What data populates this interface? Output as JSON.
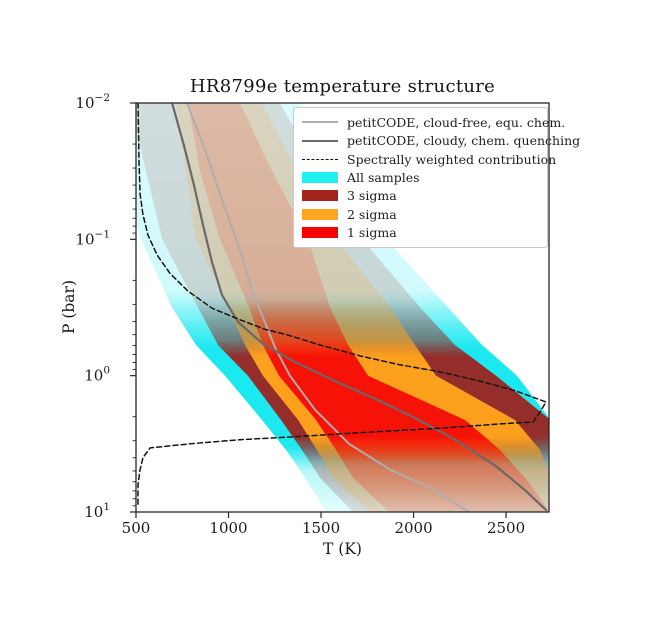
{
  "page": {
    "background": "#ffffff"
  },
  "chart_data": {
    "type": "line",
    "title": "HR8799e temperature structure",
    "xlabel": "T (K)",
    "ylabel": "P (bar)",
    "x_range": [
      500,
      2732
    ],
    "y_log_range": [
      -2,
      1
    ],
    "y_axis_note": "log scale, 10^-2 bar at top to 10^1 bar at bottom",
    "grid": false,
    "legend_position": "upper right",
    "x_ticks": [
      500,
      1000,
      1500,
      2000,
      2500
    ],
    "y_ticks": [
      {
        "base": "10",
        "exp": "−2",
        "logP": -2
      },
      {
        "base": "10",
        "exp": "−1",
        "logP": -1
      },
      {
        "base": "10",
        "exp": "0",
        "logP": 0
      },
      {
        "base": "10",
        "exp": "1",
        "logP": 1
      }
    ],
    "series": [
      {
        "name": "petitCODE, cloud-free, equ. chem.",
        "style": "solid",
        "color": "#b3acac",
        "width": 2,
        "points": [
          [
            776,
            -2
          ],
          [
            873,
            -1.655
          ],
          [
            965,
            -1.29
          ],
          [
            1062,
            -0.92
          ],
          [
            1127,
            -0.63
          ],
          [
            1197,
            -0.39
          ],
          [
            1257,
            -0.19
          ],
          [
            1332,
            0.0
          ],
          [
            1468,
            0.25
          ],
          [
            1651,
            0.5
          ],
          [
            1873,
            0.69
          ],
          [
            2089,
            0.82
          ],
          [
            2300,
            1.0
          ]
        ]
      },
      {
        "name": "petitCODE, cloudy, chem. quenching",
        "style": "solid",
        "color": "#6e6767",
        "width": 2.2,
        "points": [
          [
            695,
            -2
          ],
          [
            759,
            -1.69
          ],
          [
            813,
            -1.4
          ],
          [
            862,
            -1.105
          ],
          [
            911,
            -0.833
          ],
          [
            965,
            -0.591
          ],
          [
            1051,
            -0.394
          ],
          [
            1181,
            -0.239
          ],
          [
            1359,
            -0.1
          ],
          [
            1576,
            0.04
          ],
          [
            1792,
            0.17
          ],
          [
            2008,
            0.31
          ],
          [
            2224,
            0.47
          ],
          [
            2441,
            0.66
          ],
          [
            2603,
            0.84
          ],
          [
            2716,
            0.985
          ]
        ]
      },
      {
        "name": "Spectrally weighted contribution",
        "style": "dashed",
        "color": "#141414",
        "width": 1.5,
        "points": [
          [
            511,
            -2
          ],
          [
            516,
            -1.58
          ],
          [
            522,
            -1.33
          ],
          [
            538,
            -1.18
          ],
          [
            565,
            -1.03
          ],
          [
            614,
            -0.885
          ],
          [
            684,
            -0.75
          ],
          [
            781,
            -0.62
          ],
          [
            911,
            -0.495
          ],
          [
            1062,
            -0.41
          ],
          [
            1197,
            -0.34
          ],
          [
            1316,
            -0.3
          ],
          [
            1495,
            -0.225
          ],
          [
            1711,
            -0.145
          ],
          [
            1927,
            -0.08
          ],
          [
            2143,
            -0.028
          ],
          [
            2359,
            0.04
          ],
          [
            2549,
            0.11
          ],
          [
            2716,
            0.193
          ],
          [
            2684,
            0.266
          ],
          [
            2646,
            0.34
          ],
          [
            2468,
            0.354
          ],
          [
            2305,
            0.37
          ],
          [
            2089,
            0.39
          ],
          [
            1873,
            0.405
          ],
          [
            1603,
            0.427
          ],
          [
            1332,
            0.45
          ],
          [
            1062,
            0.47
          ],
          [
            792,
            0.5
          ],
          [
            576,
            0.53
          ],
          [
            538,
            0.6
          ],
          [
            522,
            0.69
          ],
          [
            511,
            0.8
          ],
          [
            511,
            0.947
          ]
        ]
      }
    ],
    "bands": [
      {
        "name": "All samples",
        "color": "#10e7ef",
        "opacity_stops": [
          [
            0,
            0.15
          ],
          [
            0.46,
            0.2
          ],
          [
            0.54,
            0.65
          ],
          [
            0.6,
            0.95
          ],
          [
            0.84,
            0.95
          ],
          [
            0.9,
            0.3
          ],
          [
            1,
            0.12
          ]
        ],
        "rows": [
          {
            "logP": -2,
            "tl": 332,
            "tr": 1386
          },
          {
            "logP": -1.5,
            "tl": 424,
            "tr": 1608
          },
          {
            "logP": -1,
            "tl": 527,
            "tr": 1851
          },
          {
            "logP": -0.5,
            "tl": 695,
            "tr": 2186
          },
          {
            "logP": -0.225,
            "tl": 824,
            "tr": 2370
          },
          {
            "logP": 0,
            "tl": 981,
            "tr": 2559
          },
          {
            "logP": 0.325,
            "tl": 1181,
            "tr": 2740
          },
          {
            "logP": 0.545,
            "tl": 1311,
            "tr": 2740
          },
          {
            "logP": 0.75,
            "tl": 1414,
            "tr": 2740
          },
          {
            "logP": 1,
            "tl": 1532,
            "tr": 2740
          }
        ]
      },
      {
        "name": "3 sigma",
        "color": "#9b2420",
        "opacity_stops": [
          [
            0,
            0.14
          ],
          [
            0.48,
            0.17
          ],
          [
            0.58,
            0.55
          ],
          [
            0.62,
            0.95
          ],
          [
            0.815,
            0.95
          ],
          [
            0.88,
            0.33
          ],
          [
            1,
            0.13
          ]
        ],
        "rows": [
          {
            "logP": -2,
            "tl": 468,
            "tr": 1278
          },
          {
            "logP": -1.5,
            "tl": 554,
            "tr": 1484
          },
          {
            "logP": -1,
            "tl": 641,
            "tr": 1722
          },
          {
            "logP": -0.5,
            "tl": 835,
            "tr": 2035
          },
          {
            "logP": -0.225,
            "tl": 943,
            "tr": 2224
          },
          {
            "logP": 0,
            "tl": 1105,
            "tr": 2446
          },
          {
            "logP": 0.325,
            "tl": 1284,
            "tr": 2740
          },
          {
            "logP": 0.545,
            "tl": 1397,
            "tr": 2740
          },
          {
            "logP": 0.75,
            "tl": 1495,
            "tr": 2740
          },
          {
            "logP": 1,
            "tl": 1673,
            "tr": 2740
          }
        ]
      },
      {
        "name": "2 sigma",
        "color": "#ffa41e",
        "opacity_stops": [
          [
            0,
            0.16
          ],
          [
            0.48,
            0.19
          ],
          [
            0.58,
            0.6
          ],
          [
            0.62,
            0.97
          ],
          [
            0.815,
            0.97
          ],
          [
            0.88,
            0.35
          ],
          [
            1,
            0.14
          ]
        ],
        "rows": [
          {
            "logP": -2,
            "tl": 716,
            "tr": 1181
          },
          {
            "logP": -1.5,
            "tl": 770,
            "tr": 1370
          },
          {
            "logP": -1,
            "tl": 824,
            "tr": 1581
          },
          {
            "logP": -0.5,
            "tl": 997,
            "tr": 1873
          },
          {
            "logP": -0.225,
            "tl": 1089,
            "tr": 2008
          },
          {
            "logP": 0,
            "tl": 1186,
            "tr": 2122
          },
          {
            "logP": 0.325,
            "tl": 1376,
            "tr": 2548
          },
          {
            "logP": 0.545,
            "tl": 1478,
            "tr": 2684
          },
          {
            "logP": 0.75,
            "tl": 1565,
            "tr": 2740
          },
          {
            "logP": 1,
            "tl": 1759,
            "tr": 2740
          }
        ]
      },
      {
        "name": "1 sigma",
        "color": "#f50d05",
        "opacity_stops": [
          [
            0,
            0.13
          ],
          [
            0.48,
            0.16
          ],
          [
            0.58,
            0.55
          ],
          [
            0.62,
            0.97
          ],
          [
            0.815,
            0.97
          ],
          [
            0.88,
            0.33
          ],
          [
            1,
            0.12
          ]
        ],
        "rows": [
          {
            "logP": -2,
            "tl": 781,
            "tr": 1062
          },
          {
            "logP": -1.5,
            "tl": 846,
            "tr": 1235
          },
          {
            "logP": -1,
            "tl": 954,
            "tr": 1430
          },
          {
            "logP": -0.5,
            "tl": 1111,
            "tr": 1549
          },
          {
            "logP": -0.225,
            "tl": 1186,
            "tr": 1646
          },
          {
            "logP": 0,
            "tl": 1273,
            "tr": 1754
          },
          {
            "logP": 0.325,
            "tl": 1473,
            "tr": 2278
          },
          {
            "logP": 0.545,
            "tl": 1581,
            "tr": 2468
          },
          {
            "logP": 0.75,
            "tl": 1673,
            "tr": 2603
          },
          {
            "logP": 1,
            "tl": 1868,
            "tr": 2740
          }
        ]
      }
    ]
  },
  "legend": {
    "items": [
      {
        "label": "petitCODE, cloud-free, equ. chem.",
        "sample": "line",
        "color": "#b3acac"
      },
      {
        "label": "petitCODE, cloudy, chem. quenching",
        "sample": "line",
        "color": "#6e6767"
      },
      {
        "label": "Spectrally weighted contribution",
        "sample": "dash",
        "color": "#141414"
      },
      {
        "label": "All samples",
        "sample": "patch",
        "color": "#22f0f0"
      },
      {
        "label": "3 sigma",
        "sample": "patch",
        "color": "#a3241d"
      },
      {
        "label": "2 sigma",
        "sample": "patch",
        "color": "#ffa41e"
      },
      {
        "label": "1 sigma",
        "sample": "patch",
        "color": "#f20400"
      }
    ]
  }
}
